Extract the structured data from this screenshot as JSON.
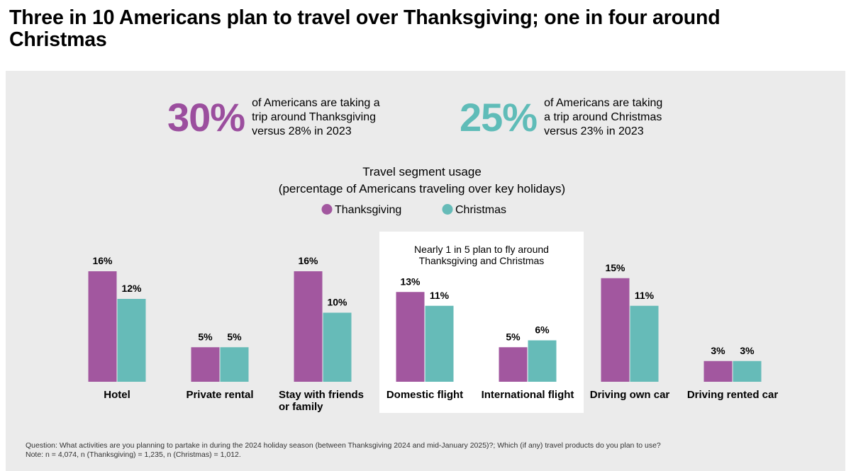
{
  "title": "Three in 10 Americans plan to travel over Thanksgiving; one in four around Christmas",
  "stats": [
    {
      "value": "30%",
      "text": [
        "of Americans are taking a",
        "trip around Thanksgiving",
        "versus 28% in 2023"
      ],
      "color": "#9b4e9e"
    },
    {
      "value": "25%",
      "text": [
        "of Americans are taking",
        "a trip around Christmas",
        "versus 23% in 2023"
      ],
      "color": "#5fbcb8"
    }
  ],
  "annotation": [
    "Nearly 1 in 5 plan to fly around",
    "Thanksgiving and Christmas"
  ],
  "chart_data": {
    "type": "bar",
    "title": [
      "Travel segment usage",
      "(percentage of Americans traveling over key holidays)"
    ],
    "categories": [
      [
        "Hotel"
      ],
      [
        "Private rental"
      ],
      [
        "Stay with friends",
        "or family"
      ],
      [
        "Domestic flight"
      ],
      [
        "International flight"
      ],
      [
        "Driving own car"
      ],
      [
        "Driving rented car"
      ]
    ],
    "series": [
      {
        "name": "Thanksgiving",
        "color": "#a2579f",
        "values": [
          16,
          5,
          16,
          13,
          5,
          15,
          3
        ]
      },
      {
        "name": "Christmas",
        "color": "#66bbb8",
        "values": [
          12,
          5,
          10,
          11,
          6,
          11,
          3
        ]
      }
    ],
    "value_suffix": "%",
    "highlight_categories": [
      3,
      4
    ],
    "legend": "top-center",
    "grid": false
  },
  "footnote": [
    "Question: What activities are you planning to partake in during the 2024 holiday season (between Thanksgiving 2024 and mid-January 2025)?; Which (if any) travel products do you plan to use?",
    "Note: n = 4,074, n (Thanksgiving) = 1,235, n (Christmas) = 1,012."
  ]
}
